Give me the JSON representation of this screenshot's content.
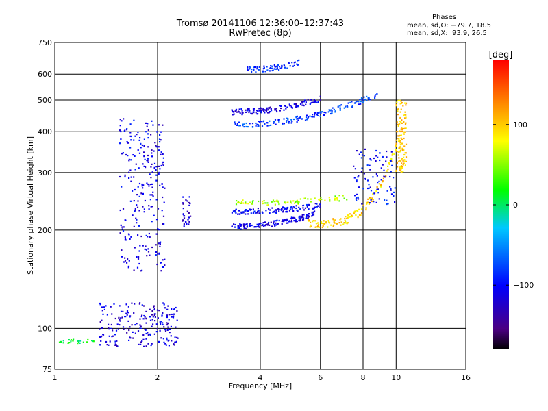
{
  "header": {
    "title_line1": "Tromsø 20141106 12:36:00–12:37:43",
    "title_line2": "RwPretec (8p)",
    "phases_heading": "Phases",
    "phases_line1": "mean, sd,O: −79.7, 18.5",
    "phases_line2": "mean, sd,X:  93.9, 26.5"
  },
  "chart_data": {
    "type": "scatter",
    "xlabel": "Frequency [MHz]",
    "ylabel": "Stationary phase Virtual Height [km]",
    "x_scale": "log",
    "y_scale": "log",
    "xlim": [
      1,
      16
    ],
    "ylim": [
      75,
      750
    ],
    "x_ticks": [
      1,
      2,
      4,
      6,
      8,
      10,
      16
    ],
    "x_tick_labels": [
      "1",
      "2",
      "4",
      "6",
      "8",
      "10",
      "16"
    ],
    "y_ticks": [
      75,
      100,
      200,
      300,
      400,
      500,
      600,
      750
    ],
    "y_tick_labels": [
      "75",
      "100",
      "200",
      "300",
      "400",
      "500",
      "600",
      "750"
    ],
    "x_gridlines": [
      2,
      4,
      6,
      8,
      10
    ],
    "y_gridlines": [
      100,
      200,
      300,
      400,
      500,
      600
    ],
    "grid": true,
    "colorbar": {
      "label": "[deg]",
      "range": [
        -180,
        180
      ],
      "ticks": [
        100,
        0,
        -100
      ],
      "tick_labels": [
        "100",
        "0",
        "−100"
      ],
      "colormap": "rainbow",
      "colors": [
        "#000000",
        "#4b0082",
        "#0000ff",
        "#00c8ff",
        "#00ff00",
        "#ffff00",
        "#ff8000",
        "#ff0000"
      ]
    },
    "series": [
      {
        "x_range": [
          1.55,
          2.1
        ],
        "y_range": [
          150,
          440
        ],
        "phase": -110,
        "count": 260,
        "shape": "spread"
      },
      {
        "x_range": [
          1.35,
          2.3
        ],
        "y_range": [
          88,
          120
        ],
        "phase": -115,
        "count": 220,
        "shape": "spread"
      },
      {
        "x_range": [
          2.35,
          2.5
        ],
        "y_range": [
          205,
          255
        ],
        "phase": -120,
        "count": 30,
        "shape": "spread"
      },
      {
        "x_range": [
          3.3,
          5.8
        ],
        "y_range": [
          205,
          225
        ],
        "phase": -110,
        "count": 150,
        "shape": "curve"
      },
      {
        "x_range": [
          3.3,
          6.0
        ],
        "y_range": [
          228,
          238
        ],
        "phase": -105,
        "count": 120,
        "shape": "curve"
      },
      {
        "x_range": [
          3.3,
          7.2
        ],
        "y_range": [
          242,
          252
        ],
        "phase": 60,
        "count": 80,
        "shape": "curve"
      },
      {
        "x_range": [
          5.5,
          10.4
        ],
        "y_range": [
          210,
          400
        ],
        "phase": 95,
        "count": 140,
        "shape": "cusp"
      },
      {
        "x_range": [
          7.5,
          10.0
        ],
        "y_range": [
          240,
          360
        ],
        "phase": -100,
        "count": 90,
        "shape": "spread"
      },
      {
        "x_range": [
          3.3,
          8.8
        ],
        "y_range": [
          420,
          520
        ],
        "phase": -80,
        "count": 160,
        "shape": "curve"
      },
      {
        "x_range": [
          3.3,
          6.0
        ],
        "y_range": [
          460,
          505
        ],
        "phase": -115,
        "count": 130,
        "shape": "curve"
      },
      {
        "x_range": [
          3.6,
          5.2
        ],
        "y_range": [
          620,
          650
        ],
        "phase": -90,
        "count": 70,
        "shape": "curve"
      },
      {
        "x_range": [
          1.02,
          1.3
        ],
        "y_range": [
          90,
          93
        ],
        "phase": 10,
        "count": 25,
        "shape": "spread"
      },
      {
        "x_range": [
          10.0,
          10.7
        ],
        "y_range": [
          300,
          500
        ],
        "phase": 100,
        "count": 120,
        "shape": "spread"
      }
    ]
  }
}
